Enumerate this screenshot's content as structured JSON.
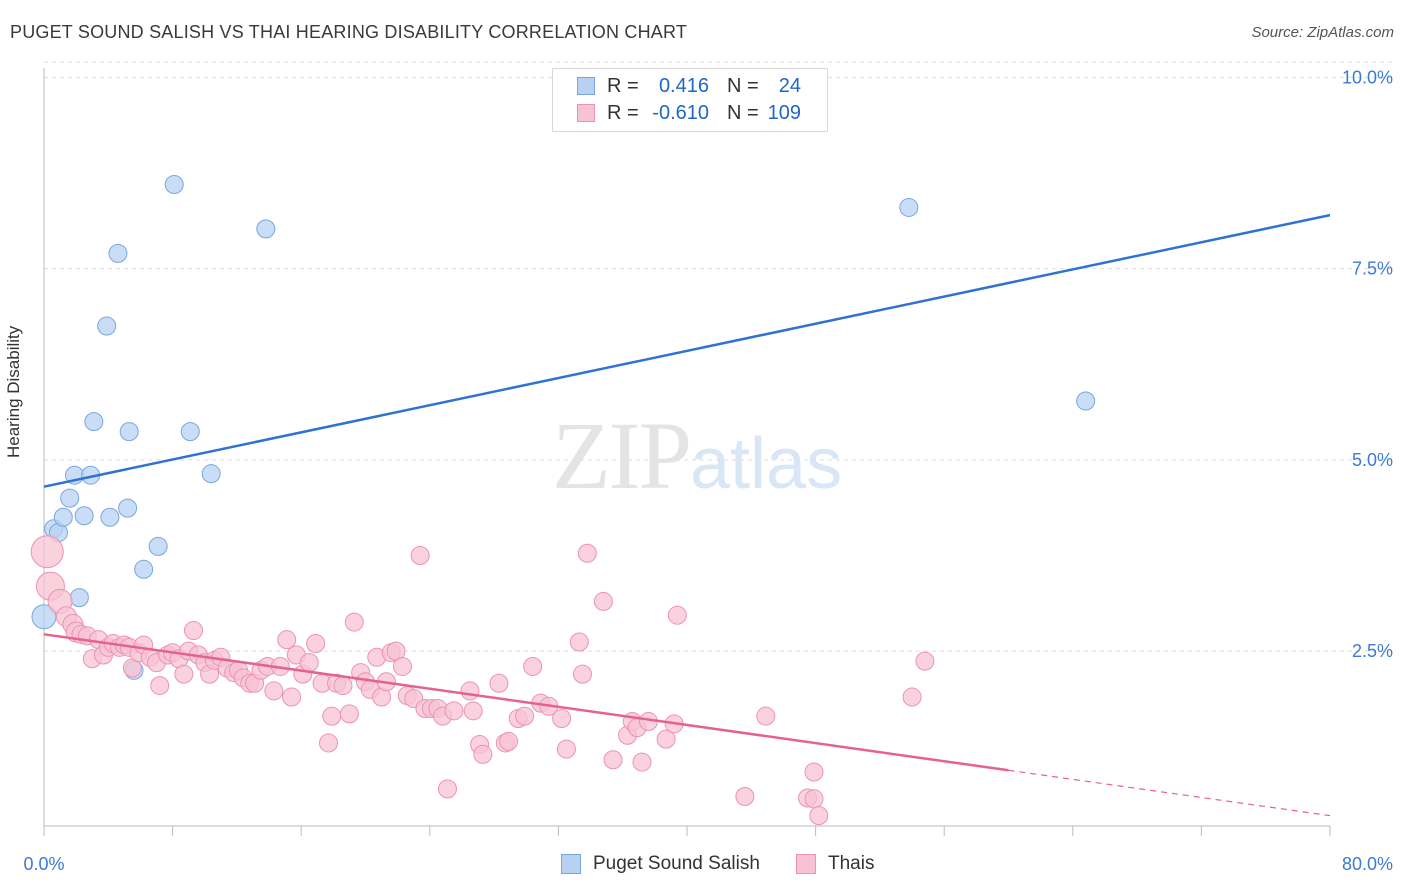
{
  "title": "PUGET SOUND SALISH VS THAI HEARING DISABILITY CORRELATION CHART",
  "source": "Source: ZipAtlas.com",
  "watermark": {
    "zip": "ZIP",
    "atlas": "atlas"
  },
  "legend": {
    "rows": [
      {
        "r_label": "R =",
        "r_value": "0.416",
        "n_label": "N =",
        "n_value": "24"
      },
      {
        "r_label": "R =",
        "r_value": "-0.610",
        "n_label": "N =",
        "n_value": "109"
      }
    ]
  },
  "bottom_legend": [
    "Puget Sound Salish",
    "Thais"
  ],
  "colors": {
    "blue_fill": "#b7d1f3",
    "blue_stroke": "#7aa6e0",
    "blue_line": "#2e73d1",
    "pink_fill": "#f7c3d3",
    "pink_stroke": "#ec93b1",
    "pink_line": "#e5628f",
    "axis_text": "#3d7ad6",
    "grid": "#dddddd"
  },
  "chart_data": {
    "type": "scatter",
    "title": "PUGET SOUND SALISH VS THAI HEARING DISABILITY CORRELATION CHART",
    "xlabel": "",
    "ylabel": "Hearing Disability",
    "xlim": [
      0,
      80
    ],
    "ylim": [
      0,
      10.5
    ],
    "x_tick_labels": [
      "0.0%",
      "80.0%"
    ],
    "y_ticks": [
      2.5,
      5.0,
      7.5,
      10.0
    ],
    "y_tick_labels": [
      "2.5%",
      "5.0%",
      "7.5%",
      "10.0%"
    ],
    "grid": true,
    "series": [
      {
        "name": "Puget Sound Salish",
        "r": 0.416,
        "n": 24,
        "trend": {
          "x": [
            0,
            80
          ],
          "y": [
            4.65,
            8.2
          ],
          "dashed_from": null
        },
        "points": [
          {
            "x": 0.0,
            "y": 2.95,
            "s": 12
          },
          {
            "x": 0.6,
            "y": 4.1,
            "s": 9
          },
          {
            "x": 0.9,
            "y": 4.05,
            "s": 9
          },
          {
            "x": 1.2,
            "y": 4.25,
            "s": 9
          },
          {
            "x": 1.6,
            "y": 4.5,
            "s": 9
          },
          {
            "x": 1.9,
            "y": 4.8,
            "s": 9
          },
          {
            "x": 2.2,
            "y": 3.2,
            "s": 9
          },
          {
            "x": 2.5,
            "y": 4.27,
            "s": 9
          },
          {
            "x": 2.9,
            "y": 4.8,
            "s": 9
          },
          {
            "x": 3.1,
            "y": 5.5,
            "s": 9
          },
          {
            "x": 3.9,
            "y": 6.75,
            "s": 9
          },
          {
            "x": 4.1,
            "y": 4.25,
            "s": 9
          },
          {
            "x": 4.6,
            "y": 7.7,
            "s": 9
          },
          {
            "x": 5.2,
            "y": 4.37,
            "s": 9
          },
          {
            "x": 5.3,
            "y": 5.37,
            "s": 9
          },
          {
            "x": 5.6,
            "y": 2.25,
            "s": 9
          },
          {
            "x": 6.2,
            "y": 3.57,
            "s": 9
          },
          {
            "x": 7.1,
            "y": 3.87,
            "s": 9
          },
          {
            "x": 8.1,
            "y": 8.6,
            "s": 9
          },
          {
            "x": 9.1,
            "y": 5.37,
            "s": 9
          },
          {
            "x": 10.4,
            "y": 4.82,
            "s": 9
          },
          {
            "x": 13.8,
            "y": 8.02,
            "s": 9
          },
          {
            "x": 53.8,
            "y": 8.3,
            "s": 9
          },
          {
            "x": 64.8,
            "y": 5.77,
            "s": 9
          }
        ]
      },
      {
        "name": "Thais",
        "r": -0.61,
        "n": 109,
        "trend": {
          "x": [
            0,
            80
          ],
          "y": [
            2.72,
            0.35
          ],
          "dashed_from": 60
        },
        "points": [
          {
            "x": 0.2,
            "y": 3.8,
            "s": 16
          },
          {
            "x": 0.4,
            "y": 3.35,
            "s": 14
          },
          {
            "x": 1.0,
            "y": 3.15,
            "s": 12
          },
          {
            "x": 1.4,
            "y": 2.95,
            "s": 10
          },
          {
            "x": 1.8,
            "y": 2.85,
            "s": 10
          },
          {
            "x": 2.0,
            "y": 2.75,
            "s": 10
          },
          {
            "x": 2.3,
            "y": 2.72,
            "s": 9
          },
          {
            "x": 2.7,
            "y": 2.7,
            "s": 9
          },
          {
            "x": 3.0,
            "y": 2.4,
            "s": 9
          },
          {
            "x": 3.4,
            "y": 2.65,
            "s": 9
          },
          {
            "x": 3.7,
            "y": 2.45,
            "s": 9
          },
          {
            "x": 4.0,
            "y": 2.55,
            "s": 9
          },
          {
            "x": 4.3,
            "y": 2.6,
            "s": 9
          },
          {
            "x": 4.7,
            "y": 2.55,
            "s": 9
          },
          {
            "x": 5.0,
            "y": 2.58,
            "s": 9
          },
          {
            "x": 5.3,
            "y": 2.55,
            "s": 9
          },
          {
            "x": 5.5,
            "y": 2.28,
            "s": 9
          },
          {
            "x": 5.9,
            "y": 2.48,
            "s": 9
          },
          {
            "x": 6.2,
            "y": 2.58,
            "s": 9
          },
          {
            "x": 6.6,
            "y": 2.42,
            "s": 9
          },
          {
            "x": 7.0,
            "y": 2.35,
            "s": 9
          },
          {
            "x": 7.2,
            "y": 2.05,
            "s": 9
          },
          {
            "x": 7.7,
            "y": 2.45,
            "s": 9
          },
          {
            "x": 8.0,
            "y": 2.48,
            "s": 9
          },
          {
            "x": 8.4,
            "y": 2.4,
            "s": 9
          },
          {
            "x": 8.7,
            "y": 2.2,
            "s": 9
          },
          {
            "x": 9.0,
            "y": 2.5,
            "s": 9
          },
          {
            "x": 9.3,
            "y": 2.77,
            "s": 9
          },
          {
            "x": 9.6,
            "y": 2.45,
            "s": 9
          },
          {
            "x": 10.0,
            "y": 2.35,
            "s": 9
          },
          {
            "x": 10.3,
            "y": 2.2,
            "s": 9
          },
          {
            "x": 10.6,
            "y": 2.38,
            "s": 9
          },
          {
            "x": 11.0,
            "y": 2.42,
            "s": 9
          },
          {
            "x": 11.4,
            "y": 2.28,
            "s": 9
          },
          {
            "x": 11.8,
            "y": 2.22,
            "s": 9
          },
          {
            "x": 12.1,
            "y": 2.25,
            "s": 9
          },
          {
            "x": 12.4,
            "y": 2.15,
            "s": 9
          },
          {
            "x": 12.8,
            "y": 2.08,
            "s": 9
          },
          {
            "x": 13.1,
            "y": 2.08,
            "s": 9
          },
          {
            "x": 13.5,
            "y": 2.25,
            "s": 9
          },
          {
            "x": 13.9,
            "y": 2.3,
            "s": 9
          },
          {
            "x": 14.3,
            "y": 1.98,
            "s": 9
          },
          {
            "x": 14.7,
            "y": 2.3,
            "s": 9
          },
          {
            "x": 15.1,
            "y": 2.65,
            "s": 9
          },
          {
            "x": 15.4,
            "y": 1.9,
            "s": 9
          },
          {
            "x": 15.7,
            "y": 2.45,
            "s": 9
          },
          {
            "x": 16.1,
            "y": 2.2,
            "s": 9
          },
          {
            "x": 16.5,
            "y": 2.35,
            "s": 9
          },
          {
            "x": 16.9,
            "y": 2.6,
            "s": 9
          },
          {
            "x": 17.3,
            "y": 2.08,
            "s": 9
          },
          {
            "x": 17.7,
            "y": 1.3,
            "s": 9
          },
          {
            "x": 17.9,
            "y": 1.65,
            "s": 9
          },
          {
            "x": 18.2,
            "y": 2.08,
            "s": 9
          },
          {
            "x": 18.6,
            "y": 2.05,
            "s": 9
          },
          {
            "x": 19.0,
            "y": 1.68,
            "s": 9
          },
          {
            "x": 19.3,
            "y": 2.88,
            "s": 9
          },
          {
            "x": 19.7,
            "y": 2.22,
            "s": 9
          },
          {
            "x": 20.0,
            "y": 2.1,
            "s": 9
          },
          {
            "x": 20.3,
            "y": 2.0,
            "s": 9
          },
          {
            "x": 20.7,
            "y": 2.42,
            "s": 9
          },
          {
            "x": 21.0,
            "y": 1.9,
            "s": 9
          },
          {
            "x": 21.3,
            "y": 2.1,
            "s": 9
          },
          {
            "x": 21.6,
            "y": 2.48,
            "s": 9
          },
          {
            "x": 21.9,
            "y": 2.5,
            "s": 9
          },
          {
            "x": 22.3,
            "y": 2.3,
            "s": 9
          },
          {
            "x": 22.6,
            "y": 1.92,
            "s": 9
          },
          {
            "x": 23.0,
            "y": 1.88,
            "s": 9
          },
          {
            "x": 23.4,
            "y": 3.75,
            "s": 9
          },
          {
            "x": 23.7,
            "y": 1.75,
            "s": 9
          },
          {
            "x": 24.1,
            "y": 1.75,
            "s": 9
          },
          {
            "x": 24.5,
            "y": 1.75,
            "s": 9
          },
          {
            "x": 24.8,
            "y": 1.65,
            "s": 9
          },
          {
            "x": 25.1,
            "y": 0.7,
            "s": 9
          },
          {
            "x": 25.5,
            "y": 1.72,
            "s": 9
          },
          {
            "x": 26.5,
            "y": 1.98,
            "s": 9
          },
          {
            "x": 26.7,
            "y": 1.72,
            "s": 9
          },
          {
            "x": 27.1,
            "y": 1.28,
            "s": 9
          },
          {
            "x": 27.3,
            "y": 1.15,
            "s": 9
          },
          {
            "x": 28.3,
            "y": 2.08,
            "s": 9
          },
          {
            "x": 28.7,
            "y": 1.3,
            "s": 9
          },
          {
            "x": 28.9,
            "y": 1.32,
            "s": 9
          },
          {
            "x": 29.5,
            "y": 1.62,
            "s": 9
          },
          {
            "x": 29.9,
            "y": 1.65,
            "s": 9
          },
          {
            "x": 30.4,
            "y": 2.3,
            "s": 9
          },
          {
            "x": 30.9,
            "y": 1.82,
            "s": 9
          },
          {
            "x": 31.4,
            "y": 1.78,
            "s": 9
          },
          {
            "x": 32.2,
            "y": 1.62,
            "s": 9
          },
          {
            "x": 32.5,
            "y": 1.22,
            "s": 9
          },
          {
            "x": 33.3,
            "y": 2.62,
            "s": 9
          },
          {
            "x": 33.5,
            "y": 2.2,
            "s": 9
          },
          {
            "x": 33.8,
            "y": 3.78,
            "s": 9
          },
          {
            "x": 34.8,
            "y": 3.15,
            "s": 9
          },
          {
            "x": 35.4,
            "y": 1.08,
            "s": 9
          },
          {
            "x": 36.3,
            "y": 1.4,
            "s": 9
          },
          {
            "x": 36.6,
            "y": 1.58,
            "s": 9
          },
          {
            "x": 36.9,
            "y": 1.5,
            "s": 9
          },
          {
            "x": 37.2,
            "y": 1.05,
            "s": 9
          },
          {
            "x": 37.6,
            "y": 1.58,
            "s": 9
          },
          {
            "x": 38.7,
            "y": 1.35,
            "s": 9
          },
          {
            "x": 39.2,
            "y": 1.55,
            "s": 9
          },
          {
            "x": 39.4,
            "y": 2.97,
            "s": 9
          },
          {
            "x": 43.6,
            "y": 0.6,
            "s": 9
          },
          {
            "x": 44.9,
            "y": 1.65,
            "s": 9
          },
          {
            "x": 47.5,
            "y": 0.58,
            "s": 9
          },
          {
            "x": 47.9,
            "y": 0.57,
            "s": 9
          },
          {
            "x": 47.9,
            "y": 0.92,
            "s": 9
          },
          {
            "x": 48.2,
            "y": 0.35,
            "s": 9
          },
          {
            "x": 54.0,
            "y": 1.9,
            "s": 9
          },
          {
            "x": 54.8,
            "y": 2.37,
            "s": 9
          }
        ]
      }
    ]
  }
}
